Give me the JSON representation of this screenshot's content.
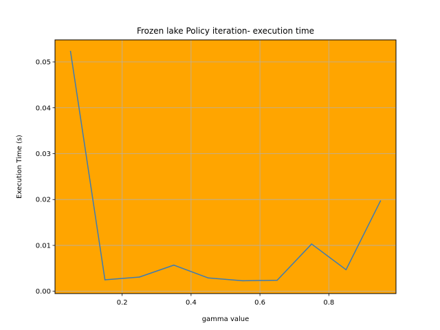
{
  "chart_data": {
    "type": "line",
    "title": "Frozen lake Policy iteration- execution time",
    "xlabel": "gamma value",
    "ylabel": "Execution Time (s)",
    "xlim": [
      0.005,
      0.995
    ],
    "ylim": [
      -0.0005,
      0.0548
    ],
    "xticks": [
      0.2,
      0.4,
      0.6,
      0.8
    ],
    "xtick_labels": [
      "0.2",
      "0.4",
      "0.6",
      "0.8"
    ],
    "yticks": [
      0.0,
      0.01,
      0.02,
      0.03,
      0.04,
      0.05
    ],
    "ytick_labels": [
      "0.00",
      "0.01",
      "0.02",
      "0.03",
      "0.04",
      "0.05"
    ],
    "grid": true,
    "plot_background": "#ffa500",
    "series": [
      {
        "color": "#3b7bb5",
        "x": [
          0.05,
          0.15,
          0.25,
          0.35,
          0.45,
          0.55,
          0.65,
          0.75,
          0.85,
          0.95
        ],
        "y": [
          0.0523,
          0.0025,
          0.0031,
          0.0057,
          0.0029,
          0.0023,
          0.0024,
          0.0103,
          0.0047,
          0.0197
        ]
      }
    ]
  }
}
